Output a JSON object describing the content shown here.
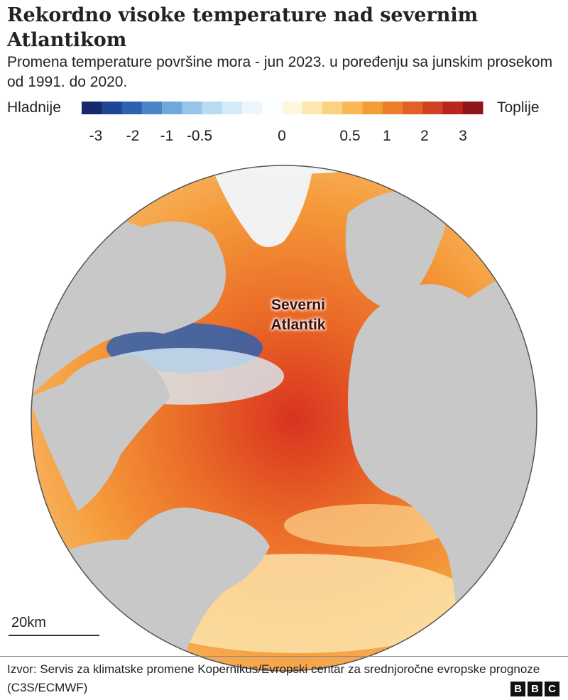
{
  "header": {
    "title": "Rekordno visoke temperature nad severnim Atlantikom",
    "subtitle": "Promena temperature površine mora - jun 2023. u poređenju sa junskim prosekom od 1991. do 2020."
  },
  "legend": {
    "low_label": "Hladnije",
    "high_label": "Toplije",
    "colors": [
      "#15296b",
      "#1f4595",
      "#2d62b3",
      "#4a85c8",
      "#6fa8dc",
      "#95c5ea",
      "#b9dbf1",
      "#d6ebf8",
      "#edf6fc",
      "#fbfdfe",
      "#fff6df",
      "#fde7b0",
      "#fbd283",
      "#f8b955",
      "#f49c36",
      "#ee7f2a",
      "#e36125",
      "#d24221",
      "#bb251e",
      "#8e1619"
    ],
    "ticks": [
      -3,
      -2,
      -1,
      -0.5,
      0,
      0.5,
      1,
      2,
      3
    ]
  },
  "map": {
    "label": "Severni Atlantik",
    "scale": "20km"
  },
  "footer": {
    "source": "Izvor: Servis za klimatske promene Kopernikus/Evropski centar za srednjoročne evropske prognoze (C3S/ECMWF)",
    "logo": [
      "B",
      "B",
      "C"
    ]
  }
}
